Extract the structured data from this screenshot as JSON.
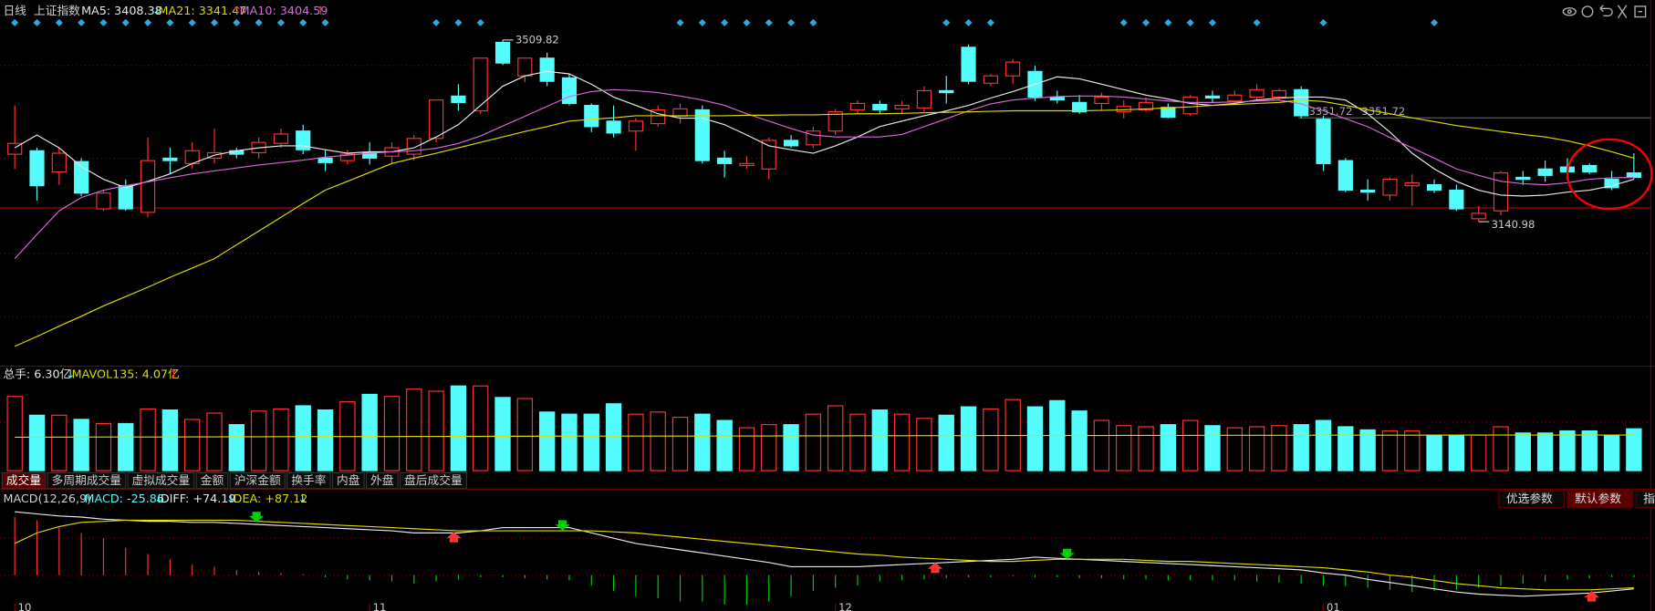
{
  "header": {
    "period": "日线",
    "index": "上证指数",
    "ma5": "MA5: 3408.38",
    "ma5_arrow": "↓",
    "ma21": "MA21: 3341.47",
    "ma21_arrow": "↑",
    "ma10": "MA10: 3404.59",
    "ma10_arrow": "↑"
  },
  "volume_header": {
    "total": "总手: 6.30亿",
    "total_arrow": "↓",
    "mavol": "MAVOL135: 4.07亿",
    "mavol_arrow": "↑"
  },
  "tabs": [
    "成交量",
    "多周期成交量",
    "虚拟成交量",
    "金额",
    "沪深金额",
    "换手率",
    "内盘",
    "外盘",
    "盘后成交量"
  ],
  "macd_header": {
    "title": "MACD(12,26,9)",
    "macd": "MACD: -25.86",
    "macd_arrow": "↓",
    "diff": "DIFF: +74.19",
    "diff_arrow": "↓",
    "dea": "DEA: +87.12",
    "dea_arrow": "↓"
  },
  "macd_buttons": [
    "优选参数",
    "默认参数",
    "指标"
  ],
  "chart_data": [
    {
      "type": "candlestick",
      "up_color": "#ff3232",
      "down_color": "#54fcfc",
      "ylim": [
        2852,
        3591
      ],
      "open": [
        3278,
        3285,
        3242,
        3263,
        3167,
        3214,
        3160,
        3270,
        3259,
        3270,
        3285,
        3281,
        3300,
        3325,
        3270,
        3265,
        3281,
        3274,
        3278,
        3310,
        3396,
        3366,
        3505,
        3437,
        3473,
        3433,
        3377,
        3345,
        3325,
        3340,
        3355,
        3368,
        3270,
        3255,
        3248,
        3306,
        3297,
        3325,
        3368,
        3379,
        3370,
        3372,
        3407,
        3495,
        3422,
        3437,
        3446,
        3394,
        3383,
        3381,
        3364,
        3368,
        3373,
        3360,
        3396,
        3386,
        3394,
        3394,
        3409,
        3349,
        3265,
        3205,
        3195,
        3214,
        3216,
        3205,
        3147,
        3163,
        3231,
        3248,
        3252,
        3255,
        3227,
        3240
      ],
      "high": [
        3377,
        3291,
        3291,
        3270,
        3205,
        3227,
        3312,
        3291,
        3302,
        3330,
        3291,
        3312,
        3330,
        3338,
        3287,
        3287,
        3302,
        3302,
        3317,
        3388,
        3420,
        3473,
        3509.82,
        3473,
        3484,
        3441,
        3381,
        3377,
        3351,
        3377,
        3381,
        3377,
        3285,
        3274,
        3312,
        3317,
        3334,
        3370,
        3387,
        3387,
        3386,
        3416,
        3437,
        3501,
        3441,
        3471,
        3458,
        3407,
        3398,
        3403,
        3388,
        3394,
        3381,
        3398,
        3407,
        3407,
        3420,
        3411,
        3416,
        3356,
        3270,
        3227,
        3231,
        3237,
        3227,
        3216,
        3173,
        3244,
        3244,
        3265,
        3270,
        3259,
        3244,
        3280
      ],
      "low": [
        3248,
        3184,
        3216,
        3193,
        3163,
        3163,
        3150,
        3238,
        3248,
        3259,
        3270,
        3270,
        3291,
        3278,
        3244,
        3257,
        3257,
        3259,
        3265,
        3302,
        3366,
        3360,
        3459,
        3424,
        3416,
        3377,
        3323,
        3312,
        3285,
        3334,
        3340,
        3259,
        3231,
        3248,
        3227,
        3291,
        3291,
        3317,
        3360,
        3360,
        3360,
        3364,
        3381,
        3420,
        3416,
        3420,
        3386,
        3381,
        3360,
        3368,
        3351,
        3364,
        3351,
        3356,
        3383,
        3379,
        3386,
        3386,
        3351,
        3244,
        3201,
        3184,
        3184,
        3173,
        3199,
        3163,
        3140.98,
        3154,
        3216,
        3222,
        3227,
        3238,
        3205,
        3227
      ],
      "close": [
        3300,
        3214,
        3280,
        3199,
        3199,
        3167,
        3265,
        3265,
        3285,
        3281,
        3278,
        3302,
        3319,
        3287,
        3261,
        3278,
        3270,
        3291,
        3310,
        3388,
        3383,
        3473,
        3463,
        3473,
        3426,
        3381,
        3334,
        3321,
        3345,
        3368,
        3370,
        3265,
        3259,
        3259,
        3306,
        3295,
        3325,
        3364,
        3381,
        3368,
        3377,
        3407,
        3403,
        3426,
        3437,
        3465,
        3394,
        3388,
        3364,
        3394,
        3375,
        3383,
        3353,
        3394,
        3392,
        3398,
        3409,
        3407,
        3356,
        3259,
        3205,
        3201,
        3227,
        3220,
        3205,
        3167,
        3158,
        3240,
        3227,
        3235,
        3242,
        3242,
        3210,
        3231
      ],
      "lines": [
        {
          "name": "MA5",
          "color": "#e8e8e8",
          "values": [
            3291,
            3317,
            3291,
            3253,
            3227,
            3210,
            3223,
            3238,
            3259,
            3276,
            3285,
            3291,
            3295,
            3295,
            3287,
            3280,
            3283,
            3283,
            3291,
            3313,
            3338,
            3377,
            3416,
            3437,
            3446,
            3441,
            3420,
            3394,
            3377,
            3360,
            3351,
            3351,
            3338,
            3317,
            3295,
            3287,
            3280,
            3295,
            3313,
            3334,
            3345,
            3356,
            3366,
            3377,
            3392,
            3405,
            3420,
            3435,
            3431,
            3420,
            3409,
            3398,
            3390,
            3381,
            3377,
            3381,
            3388,
            3392,
            3394,
            3394,
            3388,
            3360,
            3323,
            3280,
            3248,
            3223,
            3205,
            3195,
            3193,
            3195,
            3201,
            3205,
            3214,
            3227
          ]
        },
        {
          "name": "MA10",
          "color": "#d66ad8",
          "values": [
            3066,
            3115,
            3163,
            3190,
            3205,
            3214,
            3222,
            3230,
            3238,
            3244,
            3250,
            3256,
            3261,
            3266,
            3272,
            3276,
            3280,
            3283,
            3285,
            3290,
            3300,
            3315,
            3335,
            3355,
            3375,
            3395,
            3405,
            3409,
            3407,
            3403,
            3396,
            3388,
            3377,
            3360,
            3345,
            3330,
            3317,
            3313,
            3313,
            3313,
            3318,
            3334,
            3350,
            3366,
            3380,
            3388,
            3392,
            3395,
            3396,
            3396,
            3394,
            3390,
            3386,
            3383,
            3383,
            3384,
            3386,
            3388,
            3380,
            3366,
            3350,
            3334,
            3312,
            3291,
            3270,
            3248,
            3235,
            3223,
            3218,
            3216,
            3220,
            3227,
            3230,
            3231
          ]
        },
        {
          "name": "MA21",
          "color": "#dcdc00",
          "values": [
            2888,
            2908,
            2929,
            2949,
            2970,
            2989,
            3008,
            3028,
            3047,
            3066,
            3094,
            3122,
            3150,
            3178,
            3205,
            3223,
            3241,
            3259,
            3270,
            3280,
            3291,
            3302,
            3313,
            3324,
            3334,
            3345,
            3349,
            3352,
            3356,
            3356,
            3356,
            3356,
            3356,
            3357,
            3357,
            3358,
            3358,
            3359,
            3360,
            3360,
            3361,
            3362,
            3363,
            3364,
            3365,
            3366,
            3366,
            3366,
            3366,
            3367,
            3368,
            3370,
            3372,
            3374,
            3377,
            3379,
            3381,
            3383,
            3388,
            3385,
            3377,
            3368,
            3360,
            3352,
            3344,
            3336,
            3330,
            3324,
            3318,
            3313,
            3305,
            3295,
            3283,
            3270
          ]
        }
      ],
      "annotations": {
        "high": 3509.82,
        "low": 3140.98
      },
      "ref_line": 3351.72,
      "red_line": 3169
    },
    {
      "type": "bar",
      "ylim": [
        0,
        11
      ],
      "values": [
        8.5,
        6.35,
        6.35,
        5.87,
        5.39,
        5.39,
        7.07,
        6.95,
        5.87,
        6.59,
        5.27,
        6.83,
        7.07,
        7.43,
        6.95,
        7.9,
        8.74,
        8.5,
        9.34,
        9.1,
        9.7,
        9.7,
        8.38,
        8.26,
        6.71,
        6.47,
        6.47,
        7.66,
        6.47,
        6.71,
        6.11,
        6.47,
        5.75,
        4.91,
        5.27,
        5.27,
        6.47,
        7.43,
        6.47,
        6.95,
        6.47,
        5.99,
        6.35,
        7.31,
        7.07,
        8.14,
        7.31,
        8.02,
        6.83,
        5.75,
        5.15,
        5.03,
        5.27,
        5.75,
        5.15,
        4.91,
        5.03,
        5.15,
        5.27,
        5.75,
        5.03,
        4.67,
        4.55,
        4.55,
        4.07,
        4.07,
        4.07,
        5.03,
        4.31,
        4.31,
        4.55,
        4.55,
        4.07,
        4.79
      ],
      "mavol": {
        "name": "MAVOL135",
        "color": "#dcdc00",
        "values": [
          3.83,
          3.83,
          3.84,
          3.84,
          3.85,
          3.85,
          3.86,
          3.86,
          3.87,
          3.87,
          3.88,
          3.88,
          3.89,
          3.89,
          3.9,
          3.9,
          3.91,
          3.91,
          3.92,
          3.92,
          3.93,
          3.93,
          3.94,
          3.94,
          3.95,
          3.95,
          3.96,
          3.96,
          3.96,
          3.97,
          3.97,
          3.97,
          3.98,
          3.98,
          3.98,
          3.99,
          3.99,
          3.99,
          4.0,
          4.0,
          4.0,
          4.01,
          4.01,
          4.01,
          4.02,
          4.02,
          4.02,
          4.03,
          4.03,
          4.03,
          4.04,
          4.04,
          4.04,
          4.04,
          4.05,
          4.05,
          4.05,
          4.05,
          4.05,
          4.06,
          4.06,
          4.06,
          4.06,
          4.06,
          4.06,
          4.07,
          4.07,
          4.07,
          4.07,
          4.07,
          4.07,
          4.07,
          4.07,
          4.07
        ]
      }
    },
    {
      "type": "macd",
      "ylim": [
        -30,
        80
      ],
      "pos_color": "#ff3232",
      "neg_color": "#00d000",
      "categories": [
        "10",
        null,
        null,
        null,
        null,
        null,
        null,
        null,
        null,
        null,
        null,
        null,
        null,
        null,
        null,
        null,
        "11",
        null,
        null,
        null,
        null,
        null,
        null,
        null,
        null,
        null,
        null,
        null,
        null,
        null,
        null,
        null,
        null,
        null,
        null,
        null,
        null,
        "12",
        null,
        null,
        null,
        null,
        null,
        null,
        null,
        null,
        null,
        null,
        null,
        null,
        null,
        null,
        null,
        null,
        null,
        null,
        null,
        null,
        null,
        "01",
        null,
        null,
        null,
        null,
        null,
        null,
        null,
        null,
        null,
        null,
        null,
        null,
        null,
        null
      ],
      "diff": {
        "name": "DIFF",
        "color": "#e8e8e8",
        "values": [
          60,
          58,
          56,
          55,
          53,
          52,
          51,
          51,
          50,
          50,
          49,
          48,
          47,
          46,
          45,
          44,
          43,
          42,
          40,
          40,
          40,
          42,
          45,
          45,
          45,
          45,
          40,
          35,
          30,
          27,
          24,
          21,
          18,
          15,
          12,
          8,
          8,
          8,
          8,
          9,
          10,
          11,
          12,
          13,
          14,
          15,
          17,
          16,
          15,
          14,
          13,
          12,
          11,
          10,
          9,
          8,
          7,
          6,
          5,
          2,
          0,
          -4,
          -7,
          -10,
          -13,
          -16,
          -18,
          -19,
          -20,
          -19,
          -18,
          -17,
          -15,
          -13
        ]
      },
      "dea": {
        "name": "DEA",
        "color": "#dcdc00",
        "values": [
          30,
          40,
          46,
          50,
          51,
          52,
          52,
          52,
          52,
          52,
          52,
          51,
          50,
          49,
          48,
          47,
          46,
          45,
          44,
          43,
          42,
          42,
          42,
          42,
          42,
          42,
          42,
          41,
          40,
          38,
          36,
          34,
          32,
          30,
          28,
          26,
          24,
          22,
          20,
          19,
          17,
          16,
          15,
          14,
          13,
          13,
          14,
          15,
          15,
          15,
          15,
          14,
          13,
          13,
          12,
          11,
          10,
          9,
          8,
          7,
          5,
          3,
          0,
          -2,
          -5,
          -8,
          -10,
          -12,
          -13,
          -14,
          -14,
          -14,
          -13,
          -12
        ]
      },
      "macd": [
        55,
        52,
        45,
        40,
        35,
        26,
        20,
        15,
        10,
        8,
        5,
        3,
        2,
        1,
        -2,
        -4,
        -5,
        -6,
        -8,
        -6,
        -4,
        -2,
        -2,
        -3,
        -4,
        -5,
        -10,
        -15,
        -20,
        -22,
        -25,
        -25,
        -28,
        -28,
        -25,
        -20,
        -15,
        -12,
        -10,
        -6,
        -5,
        -4,
        -3,
        -2,
        -2,
        -1,
        -2,
        -2,
        -3,
        -3,
        -4,
        -4,
        -5,
        -5,
        -5,
        -5,
        -6,
        -7,
        -8,
        -10,
        -10,
        -12,
        -14,
        -16,
        -15,
        -14,
        -12,
        -10,
        -8,
        -6,
        -4,
        -3,
        -2,
        -2
      ]
    }
  ]
}
